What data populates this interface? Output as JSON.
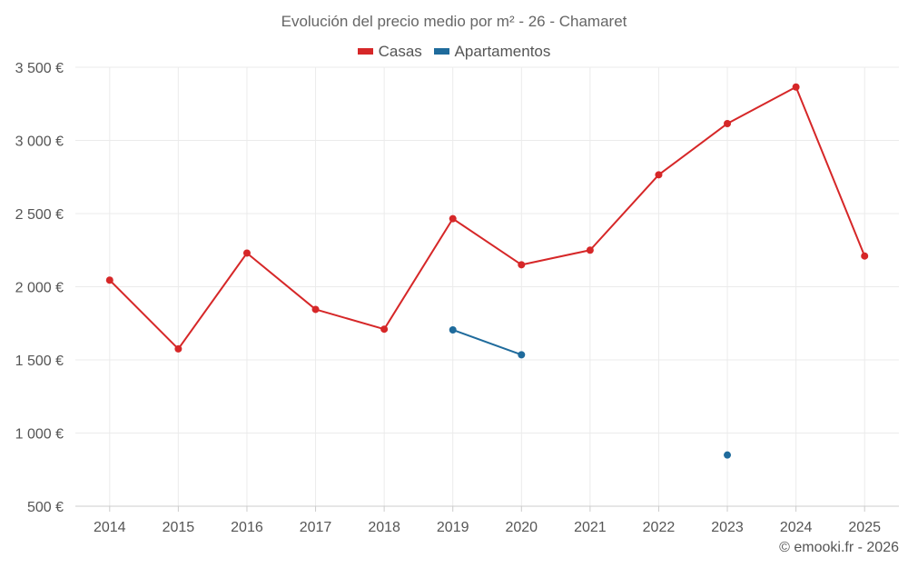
{
  "chart_data": {
    "type": "line",
    "title": "Evolución del precio medio por m² - 26 - Chamaret",
    "xlabel": "",
    "ylabel": "",
    "categories": [
      "2014",
      "2015",
      "2016",
      "2017",
      "2018",
      "2019",
      "2020",
      "2021",
      "2022",
      "2023",
      "2024",
      "2025"
    ],
    "ylim": [
      500,
      3500
    ],
    "yticks": [
      500,
      1000,
      1500,
      2000,
      2500,
      3000,
      3500
    ],
    "ytick_labels": [
      "500 €",
      "1 000 €",
      "1 500 €",
      "2 000 €",
      "2 500 €",
      "3 000 €",
      "3 500 €"
    ],
    "legend_position": "top-center",
    "grid": true,
    "series": [
      {
        "name": "Casas",
        "color": "#d62728",
        "values": [
          2045,
          1575,
          2230,
          1845,
          1710,
          2465,
          2150,
          2250,
          2765,
          3115,
          3365,
          2210
        ]
      },
      {
        "name": "Apartamentos",
        "color": "#1f6b9c",
        "values": [
          null,
          null,
          null,
          null,
          null,
          1705,
          1535,
          null,
          null,
          850,
          null,
          null
        ]
      }
    ]
  },
  "credit": "© emooki.fr - 2026"
}
